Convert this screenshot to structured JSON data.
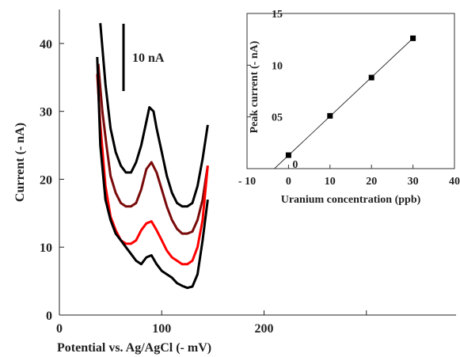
{
  "chart_data": [
    {
      "type": "line",
      "xlabel": "Potential vs. Ag/AgCl (- mV)",
      "ylabel": "Current (- nA)",
      "xlim": [
        0,
        400
      ],
      "ylim": [
        0,
        45
      ],
      "xticks": [
        "0",
        "100",
        "200"
      ],
      "yticks": [
        "0",
        "10",
        "20",
        "30",
        "40"
      ],
      "scale_bar": "10 nA",
      "series": [
        {
          "color": "#000000",
          "x": [
            40,
            45,
            50,
            55,
            60,
            65,
            70,
            75,
            80,
            85,
            88,
            92,
            95,
            100,
            105,
            110,
            115,
            120,
            125,
            130,
            135,
            140,
            145
          ],
          "y": [
            43,
            34,
            27.5,
            24,
            22,
            21,
            21,
            22.5,
            25,
            28.5,
            30.6,
            30,
            27.5,
            24,
            20.5,
            18,
            16.5,
            16,
            16,
            16.5,
            19,
            23,
            28
          ]
        },
        {
          "color": "#7a0a0a",
          "x": [
            38,
            42,
            46,
            50,
            55,
            60,
            65,
            70,
            75,
            80,
            85,
            90,
            95,
            100,
            105,
            110,
            115,
            120,
            125,
            130,
            135,
            140,
            145
          ],
          "y": [
            37,
            30,
            25,
            20.5,
            18,
            16.5,
            16,
            16,
            16.5,
            18.5,
            21.5,
            22.5,
            21,
            18.5,
            16,
            14,
            12.7,
            12,
            12,
            12.3,
            14,
            17,
            22
          ]
        },
        {
          "color": "#ff0000",
          "x": [
            37,
            40,
            45,
            50,
            55,
            60,
            65,
            70,
            75,
            80,
            85,
            90,
            95,
            100,
            105,
            110,
            115,
            120,
            125,
            130,
            135,
            140,
            145
          ],
          "y": [
            35.5,
            28,
            19,
            14.5,
            12.5,
            11,
            10.5,
            10.5,
            11,
            12.5,
            13.5,
            13.8,
            12.5,
            11,
            9.5,
            8.5,
            8,
            7.5,
            7.5,
            8,
            10,
            14,
            22
          ]
        },
        {
          "color": "#000000",
          "x": [
            37,
            40,
            45,
            50,
            55,
            60,
            65,
            70,
            75,
            80,
            85,
            90,
            95,
            100,
            105,
            110,
            115,
            120,
            125,
            130,
            135,
            140,
            145
          ],
          "y": [
            38,
            25,
            17,
            14,
            12,
            11,
            10,
            9,
            8,
            7.5,
            8.5,
            8.8,
            7.5,
            6.5,
            6,
            5.5,
            4.7,
            4.3,
            4,
            4.2,
            6,
            11,
            17
          ]
        }
      ]
    },
    {
      "type": "scatter",
      "xlabel": "Uranium concentration (ppb)",
      "ylabel": "Peak current (- nA)",
      "xlim": [
        -10,
        40
      ],
      "ylim": [
        0,
        15
      ],
      "xticks": [
        "- 10",
        "0",
        "10",
        "20",
        "30",
        "40"
      ],
      "yticks": [
        "05",
        "10",
        "15"
      ],
      "annotation": "0",
      "points": [
        {
          "x": 0,
          "y": 1.3
        },
        {
          "x": 10,
          "y": 5.1
        },
        {
          "x": 20,
          "y": 8.8
        },
        {
          "x": 30,
          "y": 12.6
        }
      ],
      "fit_line": [
        {
          "x": -3.4,
          "y": 0
        },
        {
          "x": 30,
          "y": 12.6
        }
      ]
    }
  ]
}
